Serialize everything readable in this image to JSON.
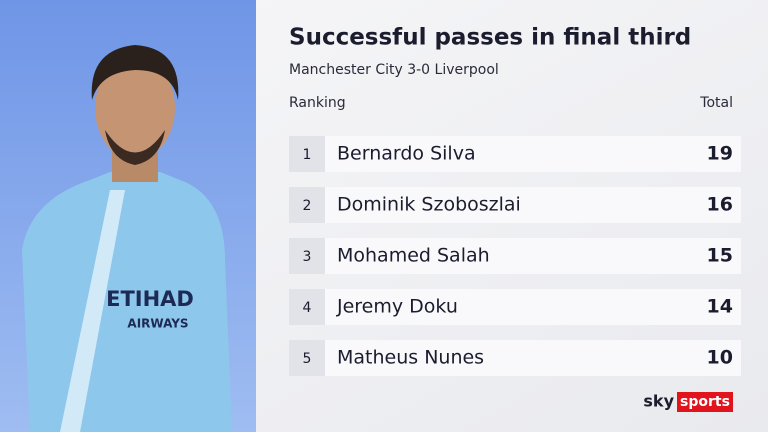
{
  "header": {
    "title": "Successful passes in final third",
    "subtitle": "Manchester City 3-0 Liverpool"
  },
  "table": {
    "columns": [
      "Ranking",
      "Total"
    ],
    "rows": [
      [
        1,
        "Bernardo Silva",
        19
      ],
      [
        2,
        "Dominik Szoboszlai",
        16
      ],
      [
        3,
        "Mohamed Salah",
        15
      ],
      [
        4,
        "Jeremy Doku",
        14
      ],
      [
        5,
        "Matheus Nunes",
        10
      ]
    ]
  },
  "photo": {
    "shirt_sponsor": "ETIHAD",
    "shirt_sponsor_sub": "AIRWAYS"
  },
  "logo": {
    "brand": "sky",
    "product": "sports"
  }
}
